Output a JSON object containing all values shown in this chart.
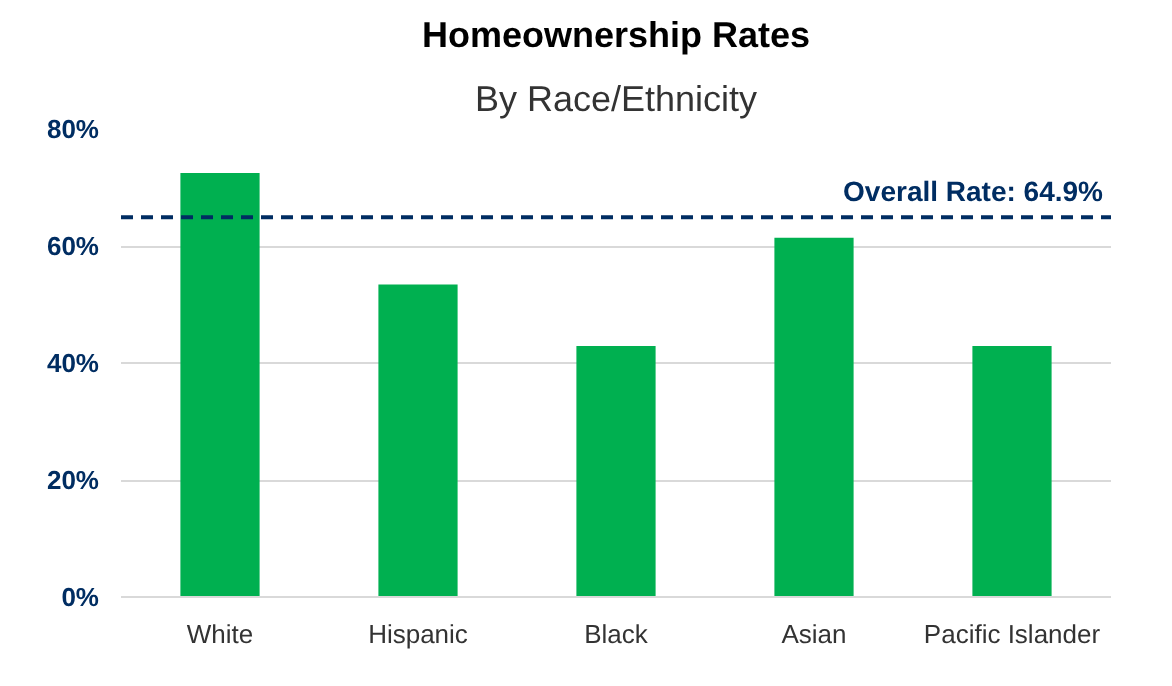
{
  "chart_data": {
    "type": "bar",
    "title": "Homeownership Rates",
    "subtitle": "By Race/Ethnicity",
    "categories": [
      "White",
      "Hispanic",
      "Black",
      "Asian",
      "Pacific Islander"
    ],
    "values": [
      72.5,
      53.4,
      42.9,
      61.4,
      42.9
    ],
    "color": "#00b050",
    "ylim": [
      0,
      80
    ],
    "yticks": [
      {
        "value": 0,
        "label": "0%"
      },
      {
        "value": 20,
        "label": "20%"
      },
      {
        "value": 40,
        "label": "40%"
      },
      {
        "value": 60,
        "label": "60%"
      },
      {
        "value": 80,
        "label": "80%"
      }
    ],
    "grid": "y",
    "ref_lines": [
      {
        "axis": "y",
        "value": 64.9,
        "label": "Overall Rate: 64.9%",
        "color": "#002d62",
        "line_style": "dashed"
      }
    ]
  }
}
